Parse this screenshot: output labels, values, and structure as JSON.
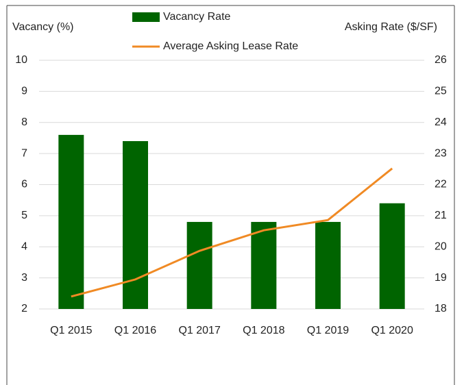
{
  "chart_data": {
    "type": "bar-line",
    "categories": [
      "Q1 2015",
      "Q1 2016",
      "Q1 2017",
      "Q1 2018",
      "Q1 2019",
      "Q1 2020"
    ],
    "y_label": "Vacancy (%)",
    "y2_label": "Asking Rate ($/SF)",
    "series": [
      {
        "name": "Vacancy Rate",
        "type": "bar",
        "color": "#006400",
        "values": [
          7.6,
          7.4,
          4.8,
          4.8,
          4.8,
          5.4
        ]
      },
      {
        "name": "Average Asking Lease Rate",
        "type": "line",
        "axis": "y2",
        "color": "#f08a24",
        "values": [
          18.4,
          18.95,
          19.87,
          20.53,
          20.86,
          22.52
        ]
      }
    ],
    "ylim": [
      2,
      10
    ],
    "yticks": [
      2,
      3,
      4,
      5,
      6,
      7,
      8,
      9,
      10
    ],
    "y2lim": [
      18,
      26
    ],
    "y2ticks": [
      18,
      19,
      20,
      21,
      22,
      23,
      24,
      25,
      26
    ],
    "grid": true,
    "legend": "top"
  }
}
